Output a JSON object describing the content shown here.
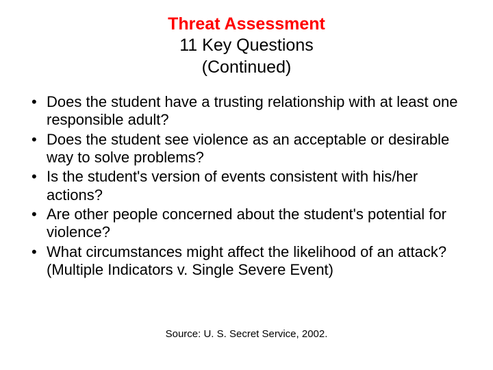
{
  "title": {
    "main": "Threat Assessment",
    "sub1": "11 Key Questions",
    "sub2": "(Continued)",
    "main_color": "#ff0000",
    "sub_color": "#000000",
    "fontsize": 25
  },
  "bullets": {
    "items": [
      "Does the student have a trusting relationship with at least one responsible adult?",
      "Does the student see violence as an acceptable or desirable way to solve problems?",
      "Is the student's version of events consistent with his/her actions?",
      "Are other people concerned about the student's potential for violence?",
      "What circumstances might affect the likelihood of an attack? (Multiple Indicators v. Single Severe Event)"
    ],
    "fontsize": 22,
    "text_color": "#000000",
    "bullet_color": "#000000"
  },
  "source": {
    "text": "Source: U. S. Secret Service, 2002.",
    "fontsize": 15,
    "color": "#000000"
  },
  "background_color": "#ffffff"
}
